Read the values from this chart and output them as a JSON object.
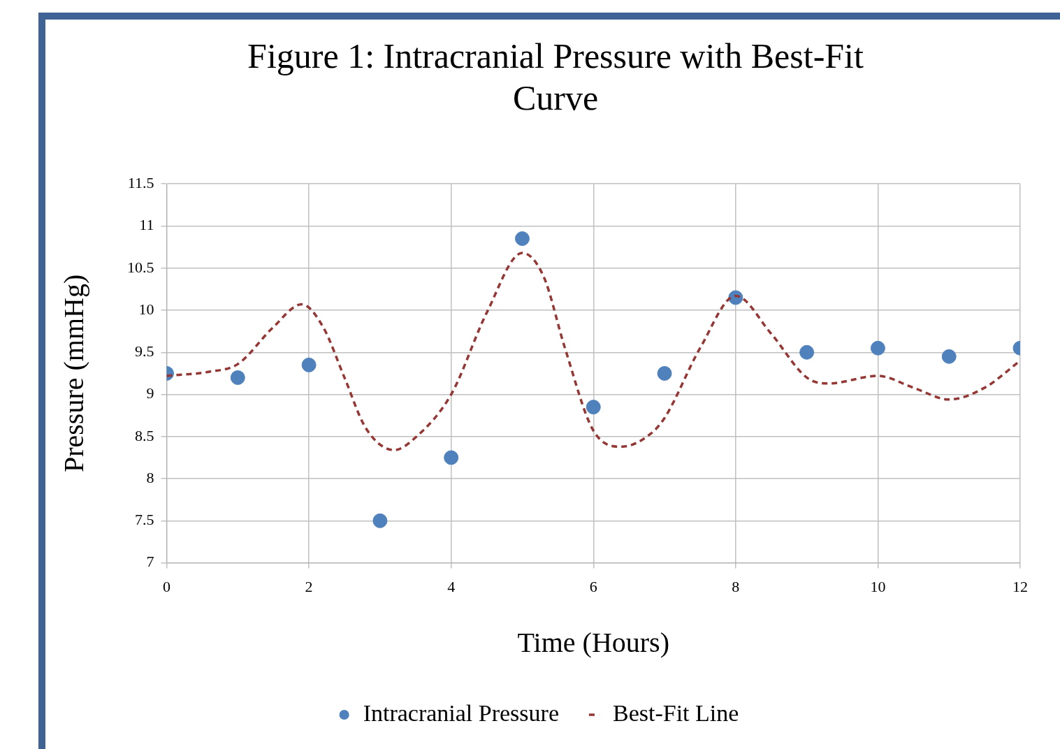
{
  "chart_data": {
    "type": "scatter",
    "title": "Figure 1: Intracranial Pressure with Best-Fit Curve",
    "xlabel": "Time (Hours)",
    "ylabel": "Pressure (mmHg)",
    "xlim": [
      0,
      12
    ],
    "xticks": [
      0,
      2,
      4,
      6,
      8,
      10,
      12
    ],
    "ylim": [
      7,
      11.5
    ],
    "yticks": [
      7,
      7.5,
      8,
      8.5,
      9,
      9.5,
      10,
      10.5,
      11,
      11.5
    ],
    "grid": true,
    "legend": "bottom",
    "series": [
      {
        "name": "Intracranial Pressure",
        "marker": "circle",
        "color": "#4f81bd",
        "x": [
          0,
          1,
          2,
          3,
          4,
          5,
          6,
          7,
          8,
          9,
          10,
          11,
          12
        ],
        "values": [
          9.25,
          9.2,
          9.35,
          7.5,
          8.25,
          10.85,
          8.85,
          9.25,
          10.15,
          9.5,
          9.55,
          9.45,
          9.55
        ]
      },
      {
        "name": "Best-Fit Line",
        "type": "line",
        "marker": "none",
        "line_style": "dashed",
        "color": "#953735",
        "x": [
          0,
          0.6,
          1,
          1.5,
          1.9,
          2.2,
          2.5,
          2.8,
          3.2,
          3.5,
          4,
          4.5,
          5,
          5.3,
          5.6,
          6,
          6.4,
          6.8,
          7,
          7.5,
          8,
          8.5,
          9,
          9.3,
          10,
          10.5,
          11,
          11.5,
          12
        ],
        "values": [
          9.22,
          9.27,
          9.36,
          9.8,
          10.07,
          9.8,
          9.2,
          8.6,
          8.34,
          8.49,
          9.0,
          9.97,
          10.68,
          10.4,
          9.55,
          8.57,
          8.38,
          8.53,
          8.72,
          9.55,
          10.17,
          9.72,
          9.2,
          9.13,
          9.22,
          9.08,
          8.94,
          9.08,
          9.4
        ]
      }
    ]
  }
}
